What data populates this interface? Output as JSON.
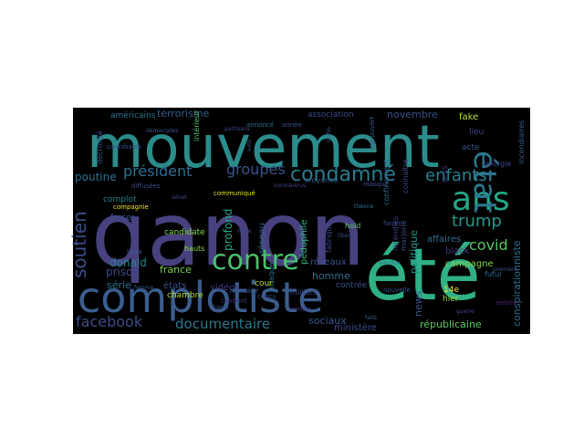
{
  "word_cloud": {
    "background": "#000000",
    "words": [
      {
        "text": "qanon",
        "color": "#48417f"
      },
      {
        "text": "mouvement",
        "color": "#2b8c8b"
      },
      {
        "text": "été",
        "color": "#2fb087"
      },
      {
        "text": "complotiste",
        "color": "#3b5d8e"
      },
      {
        "text": "ans",
        "color": "#24a786"
      },
      {
        "text": "état",
        "color": "#2a778d"
      },
      {
        "text": "contre",
        "color": "#4ac16d"
      },
      {
        "text": "condamné",
        "color": "#2b7b8e"
      },
      {
        "text": "président",
        "color": "#2d6f8e"
      },
      {
        "text": "groupes",
        "color": "#3a538b"
      },
      {
        "text": "enfants",
        "color": "#27818e"
      },
      {
        "text": "trump",
        "color": "#27968b"
      },
      {
        "text": "covid",
        "color": "#58c765"
      },
      {
        "text": "soutien",
        "color": "#3d4e8a"
      },
      {
        "text": "facebook",
        "color": "#3e4c8a"
      },
      {
        "text": "documentaire",
        "color": "#2a788e"
      },
      {
        "text": "terrorisme",
        "color": "#355f8d"
      },
      {
        "text": "novembre",
        "color": "#3b518b"
      },
      {
        "text": "fake",
        "color": "#b4de2c"
      },
      {
        "text": "poutine",
        "color": "#2d718e"
      },
      {
        "text": "donald",
        "color": "#25848e"
      },
      {
        "text": "prison",
        "color": "#3f4788"
      },
      {
        "text": "série",
        "color": "#2c728e"
      },
      {
        "text": "france",
        "color": "#7ad151"
      },
      {
        "text": "états",
        "color": "#3c4f8a"
      },
      {
        "text": "réseau",
        "color": "#31688e"
      },
      {
        "text": "profond",
        "color": "#22a884"
      },
      {
        "text": "pédophile",
        "color": "#31b57b"
      },
      {
        "text": "réseaux",
        "color": "#39568c"
      },
      {
        "text": "homme",
        "color": "#2e6e8e"
      },
      {
        "text": "sociaux",
        "color": "#38588c"
      },
      {
        "text": "ministère",
        "color": "#3e4a89"
      },
      {
        "text": "vidéos",
        "color": "#443a83"
      },
      {
        "text": "politique",
        "color": "#21918c"
      },
      {
        "text": "news",
        "color": "#3a548c"
      },
      {
        "text": "républicaine",
        "color": "#5cc863"
      },
      {
        "text": "conspirationniste",
        "color": "#2d708e"
      },
      {
        "text": "campagne",
        "color": "#84d44b"
      },
      {
        "text": "affaires",
        "color": "#2e6d8e"
      },
      {
        "text": "black",
        "color": "#46337e"
      },
      {
        "text": "unis",
        "color": "#433e85"
      },
      {
        "text": "lieu",
        "color": "#404688"
      },
      {
        "text": "acte",
        "color": "#39568c"
      },
      {
        "text": "américains",
        "color": "#2a768e"
      },
      {
        "text": "association",
        "color": "#3f4889"
      },
      {
        "text": "géorgie",
        "color": "#404588"
      },
      {
        "text": "incendiaires",
        "color": "#375a8c"
      },
      {
        "text": "complot",
        "color": "#26828e"
      },
      {
        "text": "forces",
        "color": "#3b528b"
      },
      {
        "text": "candidate",
        "color": "#86d549"
      },
      {
        "text": "hauts",
        "color": "#8fd744"
      },
      {
        "text": "chambre",
        "color": "#b5de2b"
      },
      {
        "text": "cour",
        "color": "#bddf26"
      },
      {
        "text": "attaqué",
        "color": "#2c738e"
      },
      {
        "text": "milliers",
        "color": "#3e4989"
      },
      {
        "text": "contrée",
        "color": "#3c508b"
      },
      {
        "text": "14e",
        "color": "#fde725"
      },
      {
        "text": "hier",
        "color": "#9fda3a"
      },
      {
        "text": "incendies",
        "color": "#433d84"
      },
      {
        "text": "marjorie",
        "color": "#3b528b"
      },
      {
        "text": "connaître",
        "color": "#3f4788"
      },
      {
        "text": "confinement",
        "color": "#30698e"
      },
      {
        "text": "fabrique",
        "color": "#3e4a89"
      },
      {
        "text": "hold",
        "color": "#5ec962"
      },
      {
        "text": "futur",
        "color": "#30698e"
      },
      {
        "text": "conçu",
        "color": "#3e4989"
      },
      {
        "text": "croyance",
        "color": "#365c8d"
      },
      {
        "text": "décroché",
        "color": "#3d4e8a"
      },
      {
        "text": "compagnie",
        "color": "#f1e51d"
      },
      {
        "text": "entrée",
        "color": "#482878"
      },
      {
        "text": "message",
        "color": "#375b8d"
      },
      {
        "text": "communiqué",
        "color": "#e7e419"
      },
      {
        "text": "diffusées",
        "color": "#3f4788"
      },
      {
        "text": "contient",
        "color": "#46337f"
      },
      {
        "text": "karin",
        "color": "#3c4f8a"
      },
      {
        "text": "rendu",
        "color": "#443b84"
      },
      {
        "text": "cannibales",
        "color": "#3c4f8a"
      },
      {
        "text": "intérieur",
        "color": "#4ac16d"
      },
      {
        "text": "lieux",
        "color": "#375b8d"
      },
      {
        "text": "découvert",
        "color": "#3a548c"
      },
      {
        "text": "annoncé",
        "color": "#2d708e"
      },
      {
        "text": "année",
        "color": "#3a548c"
      },
      {
        "text": "forum",
        "color": "#3f4788"
      },
      {
        "text": "masque",
        "color": "#3e4c8a"
      },
      {
        "text": "nouvelle",
        "color": "#3a548c"
      },
      {
        "text": "démocrates",
        "color": "#3b528b"
      },
      {
        "text": "coronavirus",
        "color": "#404688"
      },
      {
        "text": "théorie",
        "color": "#2e6f8e"
      },
      {
        "text": "libérés",
        "color": "#3d4d8a"
      },
      {
        "text": "sénat",
        "color": "#3f4889"
      },
      {
        "text": "élection",
        "color": "#2f6b8e"
      },
      {
        "text": "première",
        "color": "#3c508b"
      },
      {
        "text": "guerre",
        "color": "#404588"
      },
      {
        "text": "partisans",
        "color": "#3f4788"
      },
      {
        "text": "sortie",
        "color": "#3b528b"
      },
      {
        "text": "vote",
        "color": "#3e4c8a"
      },
      {
        "text": "femme",
        "color": "#375a8c"
      },
      {
        "text": "faits",
        "color": "#355f8d"
      },
      {
        "text": "mère",
        "color": "#3f4889"
      }
    ]
  }
}
